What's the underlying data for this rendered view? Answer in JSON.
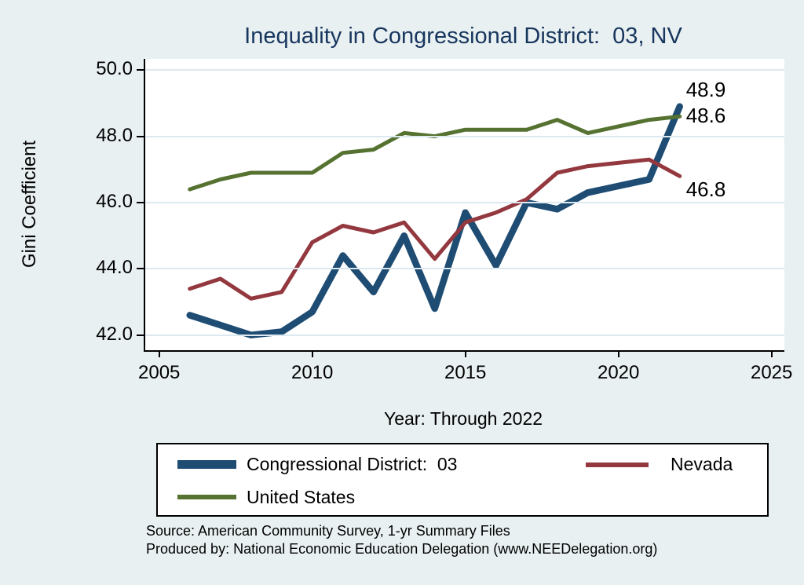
{
  "title": "Inequality in Congressional District:  03, NV",
  "chart_data": {
    "type": "line",
    "title": "Inequality in Congressional District:  03, NV",
    "xlabel": "Year: Through 2022",
    "ylabel": "Gini Coefficient",
    "xlim": [
      2004.5,
      2025.4
    ],
    "ylim": [
      41.7,
      50.3
    ],
    "grid": true,
    "legend_position": "bottom",
    "xtick_values": [
      2005,
      2010,
      2015,
      2020,
      2025
    ],
    "xtick_labels": [
      "2005",
      "2010",
      "2015",
      "2020",
      "2025"
    ],
    "ytick_values": [
      50,
      48,
      46,
      44,
      42
    ],
    "ytick_labels": [
      "50.0",
      "48.0",
      "46.0",
      "44.0",
      "42.0"
    ],
    "x": [
      2006,
      2007,
      2008,
      2009,
      2010,
      2011,
      2012,
      2013,
      2014,
      2015,
      2016,
      2017,
      2018,
      2019,
      2020,
      2021,
      2022
    ],
    "series": [
      {
        "name": "Congressional District:  03",
        "color": "#1e4c73",
        "line_width": 8.5,
        "values": [
          42.6,
          42.3,
          42.0,
          42.1,
          42.7,
          44.4,
          43.3,
          45.0,
          42.8,
          45.7,
          44.1,
          46.0,
          45.8,
          46.3,
          46.5,
          46.7,
          48.9
        ]
      },
      {
        "name": "Nevada",
        "color": "#93383e",
        "line_width": 5,
        "values": [
          43.4,
          43.7,
          43.1,
          43.3,
          44.8,
          45.3,
          45.1,
          45.4,
          44.3,
          45.4,
          45.7,
          46.1,
          46.9,
          47.1,
          47.2,
          47.3,
          46.8
        ]
      },
      {
        "name": "United States",
        "color": "#567231",
        "line_width": 5,
        "values": [
          46.4,
          46.7,
          46.9,
          46.9,
          46.9,
          47.5,
          47.6,
          48.1,
          48.0,
          48.2,
          48.2,
          48.2,
          48.5,
          48.1,
          48.3,
          48.5,
          48.6
        ]
      }
    ],
    "end_labels": [
      {
        "text": "48.9",
        "series": 0,
        "year": 2022,
        "value": 48.9,
        "dy": -21
      },
      {
        "text": "48.6",
        "series": 2,
        "year": 2022,
        "value": 48.6,
        "dy": 0
      },
      {
        "text": "46.8",
        "series": 1,
        "year": 2022,
        "value": 46.8,
        "dy": 18
      }
    ]
  },
  "legend": {
    "items": [
      {
        "label": "Congressional District:  03"
      },
      {
        "label": "Nevada"
      },
      {
        "label": "United States"
      }
    ]
  },
  "source_line1": "Source: American Community Survey, 1-yr Summary Files",
  "source_line2": "Produced by: National Economic Education Delegation (www.NEEDelegation.org)"
}
